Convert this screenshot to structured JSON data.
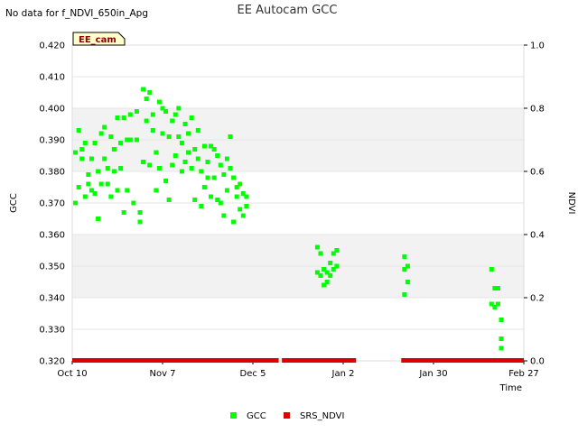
{
  "chart_data": {
    "type": "scatter",
    "title": "EE Autocam GCC",
    "no_data_note": "No data for f_NDVI_650in_Apg",
    "site_label": "EE_cam",
    "xlabel": "Time",
    "ylabel_left": "GCC",
    "ylabel_right": "NDVI",
    "x_range_days": [
      0,
      140
    ],
    "x_ticks": [
      {
        "label": "Oct 10",
        "day": 0
      },
      {
        "label": "Nov 7",
        "day": 28
      },
      {
        "label": "Dec 5",
        "day": 56
      },
      {
        "label": "Jan 2",
        "day": 84
      },
      {
        "label": "Jan 30",
        "day": 112
      },
      {
        "label": "Feb 27",
        "day": 140
      }
    ],
    "ylim_left": [
      0.32,
      0.42
    ],
    "y_ticks_left": [
      "0.320",
      "0.330",
      "0.340",
      "0.350",
      "0.360",
      "0.370",
      "0.380",
      "0.390",
      "0.400",
      "0.410",
      "0.420"
    ],
    "ylim_right": [
      0.0,
      1.0
    ],
    "y_ticks_right": [
      "0.0",
      "0.2",
      "0.4",
      "0.6",
      "0.8",
      "1.0"
    ],
    "legend": [
      {
        "name": "GCC",
        "color": "#00ff00"
      },
      {
        "name": "SRS_NDVI",
        "color": "#dd0000"
      }
    ],
    "series": [
      {
        "name": "GCC",
        "color": "#00ff00",
        "points": [
          [
            1,
            0.386
          ],
          [
            1,
            0.37
          ],
          [
            2,
            0.393
          ],
          [
            2,
            0.375
          ],
          [
            3,
            0.384
          ],
          [
            3,
            0.387
          ],
          [
            4,
            0.389
          ],
          [
            4,
            0.372
          ],
          [
            5,
            0.379
          ],
          [
            5,
            0.376
          ],
          [
            6,
            0.384
          ],
          [
            6,
            0.374
          ],
          [
            7,
            0.389
          ],
          [
            7,
            0.373
          ],
          [
            8,
            0.38
          ],
          [
            8,
            0.365
          ],
          [
            9,
            0.392
          ],
          [
            9,
            0.376
          ],
          [
            10,
            0.384
          ],
          [
            10,
            0.394
          ],
          [
            11,
            0.381
          ],
          [
            11,
            0.376
          ],
          [
            12,
            0.391
          ],
          [
            12,
            0.372
          ],
          [
            13,
            0.387
          ],
          [
            13,
            0.38
          ],
          [
            14,
            0.397
          ],
          [
            14,
            0.374
          ],
          [
            15,
            0.389
          ],
          [
            15,
            0.381
          ],
          [
            16,
            0.367
          ],
          [
            16,
            0.397
          ],
          [
            17,
            0.39
          ],
          [
            17,
            0.374
          ],
          [
            18,
            0.398
          ],
          [
            18,
            0.39
          ],
          [
            19,
            0.37
          ],
          [
            20,
            0.399
          ],
          [
            20,
            0.39
          ],
          [
            21,
            0.364
          ],
          [
            21,
            0.367
          ],
          [
            22,
            0.406
          ],
          [
            22,
            0.383
          ],
          [
            23,
            0.403
          ],
          [
            23,
            0.396
          ],
          [
            24,
            0.405
          ],
          [
            24,
            0.382
          ],
          [
            25,
            0.398
          ],
          [
            25,
            0.393
          ],
          [
            26,
            0.386
          ],
          [
            26,
            0.374
          ],
          [
            27,
            0.402
          ],
          [
            27,
            0.381
          ],
          [
            28,
            0.4
          ],
          [
            28,
            0.392
          ],
          [
            29,
            0.399
          ],
          [
            29,
            0.377
          ],
          [
            30,
            0.391
          ],
          [
            30,
            0.371
          ],
          [
            31,
            0.396
          ],
          [
            31,
            0.382
          ],
          [
            32,
            0.398
          ],
          [
            32,
            0.385
          ],
          [
            33,
            0.4
          ],
          [
            33,
            0.391
          ],
          [
            34,
            0.389
          ],
          [
            34,
            0.38
          ],
          [
            35,
            0.395
          ],
          [
            35,
            0.383
          ],
          [
            36,
            0.392
          ],
          [
            36,
            0.386
          ],
          [
            37,
            0.397
          ],
          [
            37,
            0.381
          ],
          [
            38,
            0.387
          ],
          [
            38,
            0.371
          ],
          [
            39,
            0.393
          ],
          [
            39,
            0.384
          ],
          [
            40,
            0.38
          ],
          [
            40,
            0.369
          ],
          [
            41,
            0.388
          ],
          [
            41,
            0.375
          ],
          [
            42,
            0.383
          ],
          [
            42,
            0.378
          ],
          [
            43,
            0.388
          ],
          [
            43,
            0.372
          ],
          [
            44,
            0.387
          ],
          [
            44,
            0.378
          ],
          [
            45,
            0.385
          ],
          [
            45,
            0.371
          ],
          [
            46,
            0.382
          ],
          [
            46,
            0.37
          ],
          [
            47,
            0.379
          ],
          [
            47,
            0.366
          ],
          [
            48,
            0.384
          ],
          [
            48,
            0.374
          ],
          [
            49,
            0.381
          ],
          [
            49,
            0.391
          ],
          [
            50,
            0.378
          ],
          [
            50,
            0.364
          ],
          [
            51,
            0.375
          ],
          [
            51,
            0.372
          ],
          [
            52,
            0.376
          ],
          [
            52,
            0.368
          ],
          [
            53,
            0.373
          ],
          [
            53,
            0.366
          ],
          [
            54,
            0.372
          ],
          [
            54,
            0.369
          ],
          [
            76,
            0.356
          ],
          [
            76,
            0.348
          ],
          [
            77,
            0.354
          ],
          [
            77,
            0.347
          ],
          [
            78,
            0.349
          ],
          [
            78,
            0.344
          ],
          [
            79,
            0.348
          ],
          [
            79,
            0.345
          ],
          [
            80,
            0.351
          ],
          [
            80,
            0.347
          ],
          [
            81,
            0.354
          ],
          [
            81,
            0.349
          ],
          [
            82,
            0.355
          ],
          [
            82,
            0.35
          ],
          [
            103,
            0.353
          ],
          [
            103,
            0.349
          ],
          [
            103,
            0.341
          ],
          [
            104,
            0.35
          ],
          [
            104,
            0.345
          ],
          [
            130,
            0.349
          ],
          [
            130,
            0.338
          ],
          [
            131,
            0.343
          ],
          [
            131,
            0.337
          ],
          [
            132,
            0.338
          ],
          [
            132,
            0.343
          ],
          [
            133,
            0.333
          ],
          [
            133,
            0.327
          ],
          [
            133,
            0.324
          ]
        ]
      }
    ],
    "srs_ndvi_segments": [
      [
        0,
        64
      ],
      [
        65,
        88
      ],
      [
        102,
        140
      ]
    ],
    "srs_ndvi_value": 0.0
  }
}
